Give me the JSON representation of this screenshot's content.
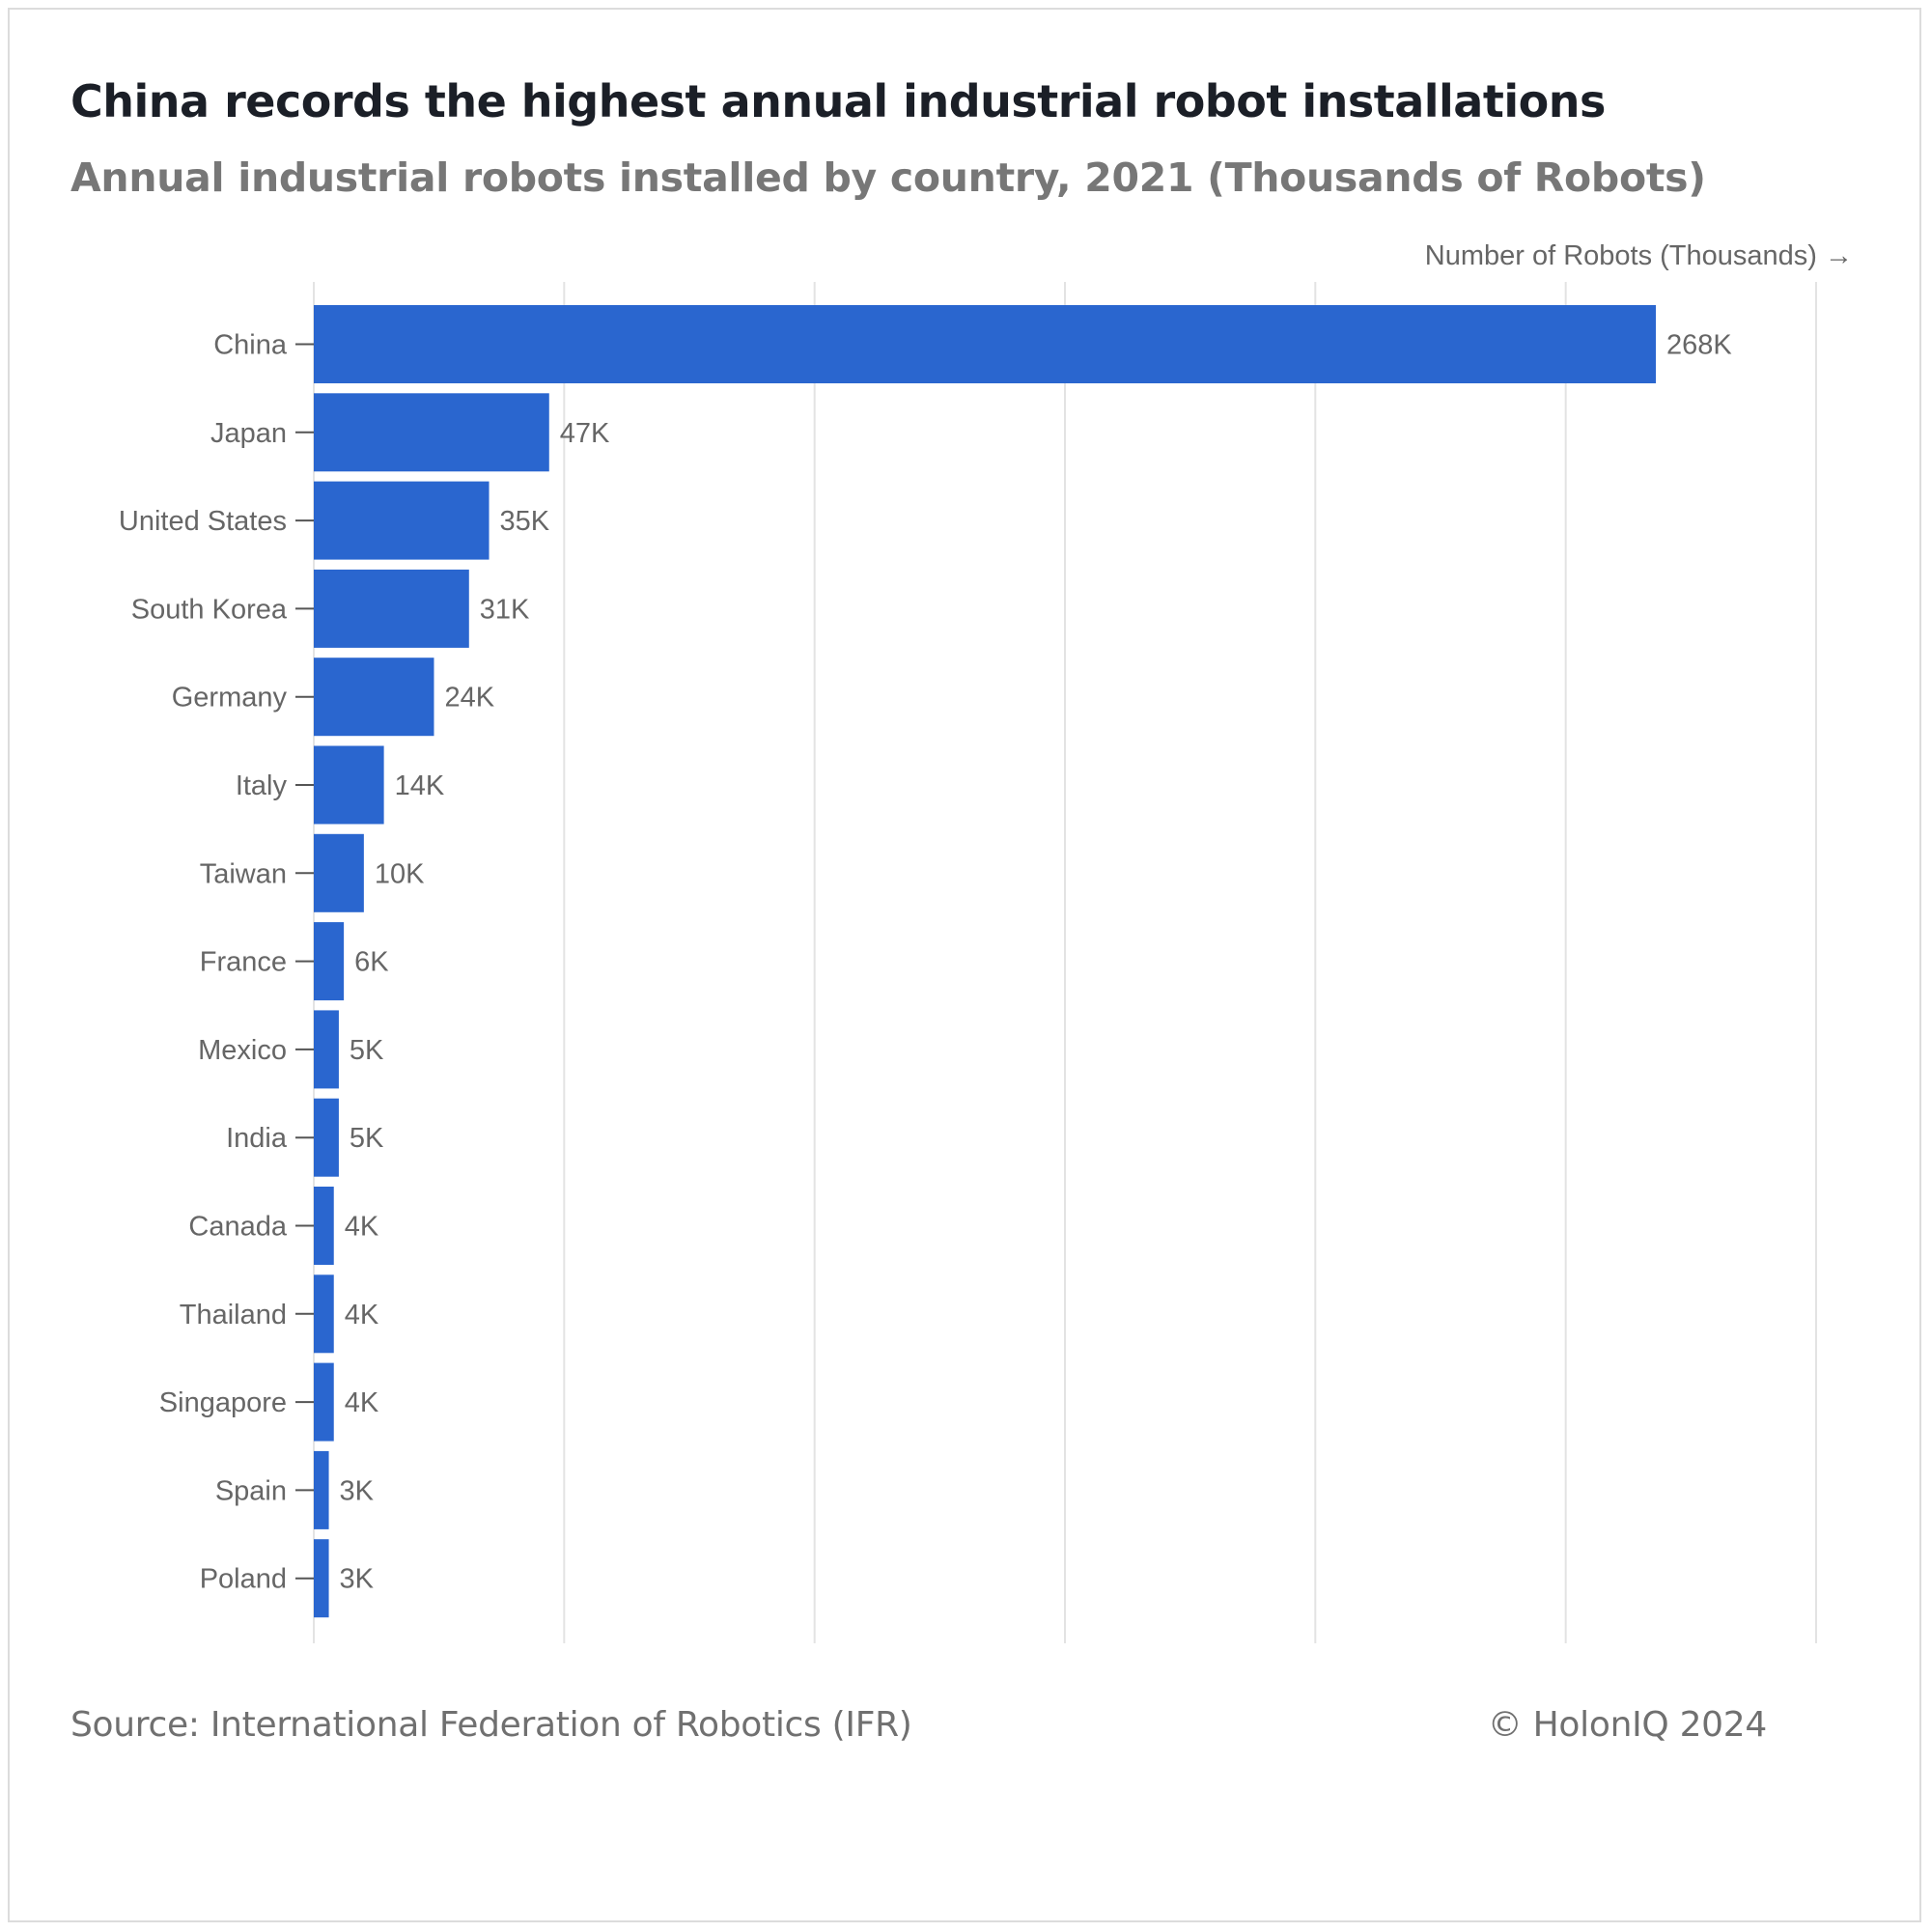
{
  "title": "China records the highest annual industrial robot installations",
  "subtitle": "Annual industrial robots installed by country, 2021 (Thousands of Robots)",
  "source": "Source: International Federation of Robotics (IFR)",
  "credit": "© HolonIQ 2024",
  "colors": {
    "bar": "#2a66cf",
    "grid": "#e3e3e3",
    "axis_text": "#666666",
    "tick": "#555555"
  },
  "chart_data": {
    "type": "bar",
    "orientation": "horizontal",
    "title": "China records the highest annual industrial robot installations",
    "subtitle": "Annual industrial robots installed by country, 2021 (Thousands of Robots)",
    "xlabel": "Number of Robots (Thousands) →",
    "ylabel": "",
    "xlim": [
      0,
      300
    ],
    "grid_step": 50,
    "grid": true,
    "categories": [
      "China",
      "Japan",
      "United States",
      "South Korea",
      "Germany",
      "Italy",
      "Taiwan",
      "France",
      "Mexico",
      "India",
      "Canada",
      "Thailand",
      "Singapore",
      "Spain",
      "Poland"
    ],
    "values": [
      268,
      47,
      35,
      31,
      24,
      14,
      10,
      6,
      5,
      5,
      4,
      4,
      4,
      3,
      3
    ],
    "labels": [
      "268K",
      "47K",
      "35K",
      "31K",
      "24K",
      "14K",
      "10K",
      "6K",
      "5K",
      "5K",
      "4K",
      "4K",
      "4K",
      "3K",
      "3K"
    ]
  }
}
